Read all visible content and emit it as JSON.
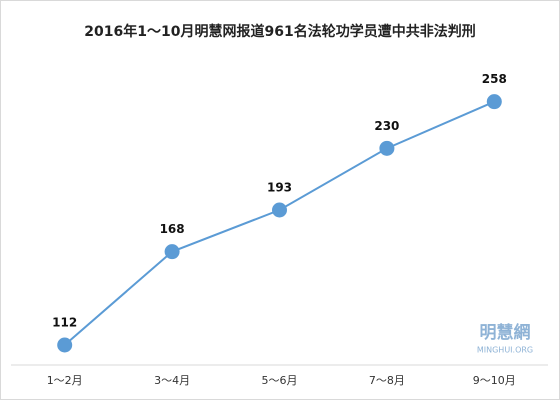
{
  "chart_data": {
    "type": "line",
    "title": "2016年1～10月明慧网报道961名法轮功学员遭中共非法判刑",
    "categories": [
      "1～2月",
      "3～4月",
      "5～6月",
      "7～8月",
      "9～10月"
    ],
    "values": [
      112,
      168,
      193,
      230,
      258
    ],
    "color": "#5b9bd5",
    "ylim": [
      100,
      280
    ],
    "watermark": "明慧網",
    "watermark_sub": "MINGHUI.ORG"
  }
}
